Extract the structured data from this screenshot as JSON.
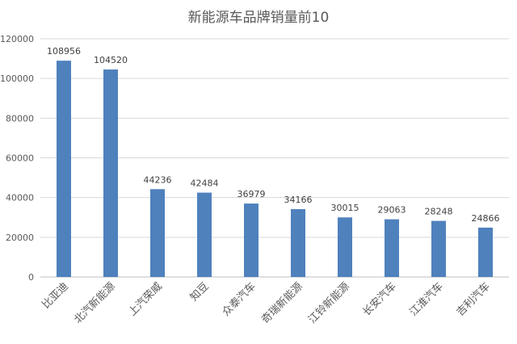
{
  "chart_data": {
    "type": "bar",
    "title": "新能源车品牌销量前10",
    "xlabel": "",
    "ylabel": "",
    "ylim": [
      0,
      120000
    ],
    "yticks": [
      0,
      20000,
      40000,
      60000,
      80000,
      100000,
      120000
    ],
    "grid": true,
    "legend": "none",
    "bar_color": "#4F81BD",
    "categories": [
      "比亚迪",
      "北汽新能源",
      "上汽荣威",
      "知豆",
      "众泰汽车",
      "奇瑞新能源",
      "江铃新能源",
      "长安汽车",
      "江淮汽车",
      "吉利汽车"
    ],
    "values": [
      108956,
      104520,
      44236,
      42484,
      36979,
      34166,
      30015,
      29063,
      28248,
      24866
    ]
  }
}
